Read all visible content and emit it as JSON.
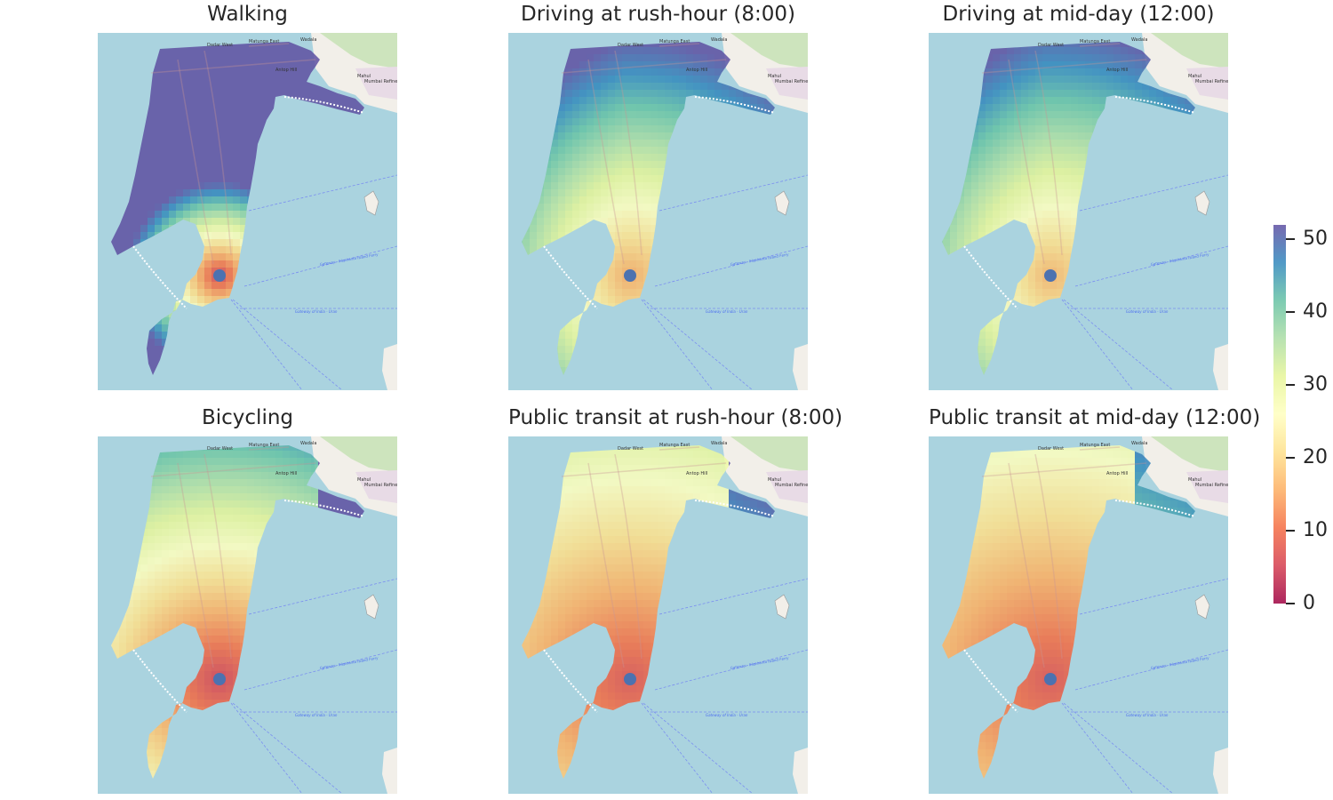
{
  "panels": [
    {
      "title": "Walking",
      "mode": "walking"
    },
    {
      "title": "Driving at rush-hour (8:00)",
      "mode": "driving_rush"
    },
    {
      "title": "Driving at mid-day (12:00)",
      "mode": "driving_mid"
    },
    {
      "title": "Bicycling",
      "mode": "bicycling"
    },
    {
      "title": "Public transit at rush-hour (8:00)",
      "mode": "transit_rush"
    },
    {
      "title": "Public transit at mid-day (12:00)",
      "mode": "transit_mid"
    }
  ],
  "map_labels": {
    "place_1": "Dadar West",
    "place_2": "Matunga East",
    "place_3": "Wadala",
    "place_4": "Antop Hill",
    "place_5": "Mahul",
    "place_6": "Mumbai Refinery",
    "ferry_1": "Gateway - Elephanta Island Ferry",
    "ferry_2": "Gateway of India - Uran"
  },
  "colorbar": {
    "ticks": [
      "0",
      "10",
      "20",
      "30",
      "40",
      "50"
    ],
    "tick_values": [
      0,
      10,
      20,
      30,
      40,
      50
    ],
    "max": 52,
    "colormap": "Spectral"
  },
  "colors": {
    "water": "#aad3df",
    "land": "#f2efe9",
    "origin_marker": "#4c72b0",
    "title_text": "#262626"
  }
}
